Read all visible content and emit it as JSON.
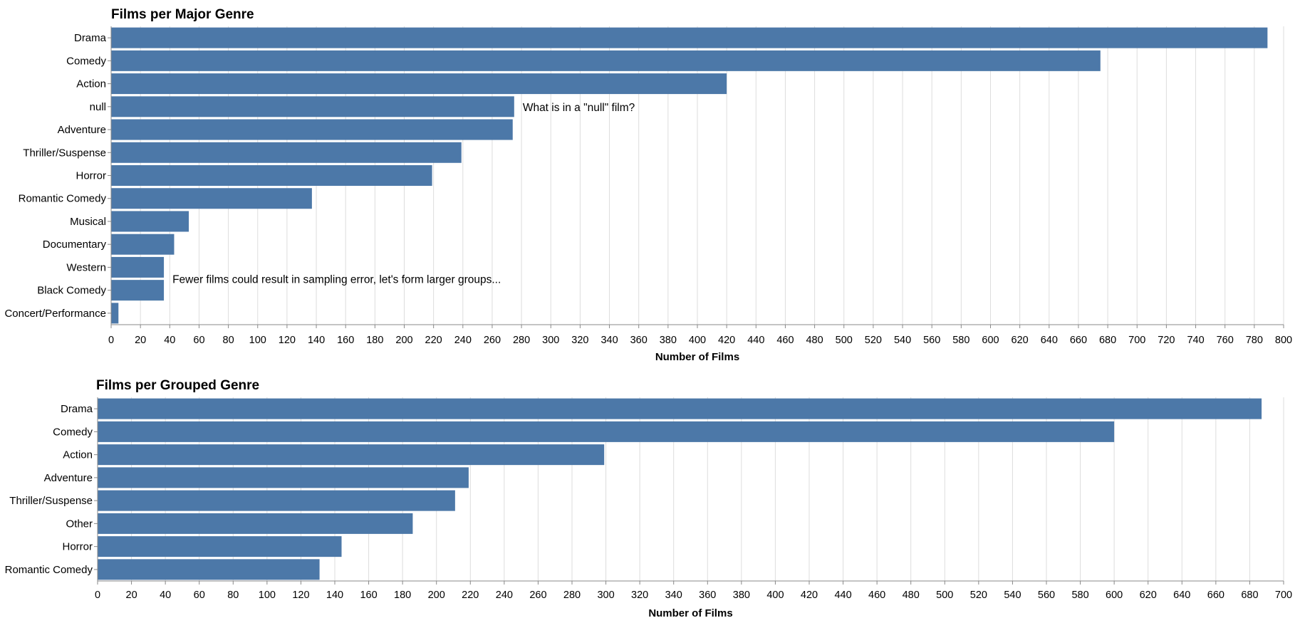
{
  "chart_data": [
    {
      "type": "bar",
      "orientation": "horizontal",
      "title": "Films per Major Genre",
      "xlabel": "Number of Films",
      "ylabel": "",
      "xlim": [
        0,
        800
      ],
      "x_ticks": [
        0,
        20,
        40,
        60,
        80,
        100,
        120,
        140,
        160,
        180,
        200,
        220,
        240,
        260,
        280,
        300,
        320,
        340,
        360,
        380,
        400,
        420,
        440,
        460,
        480,
        500,
        520,
        540,
        560,
        580,
        600,
        620,
        640,
        660,
        680,
        700,
        720,
        740,
        760,
        780,
        800
      ],
      "grid": true,
      "color": "#4c78a8",
      "categories": [
        "Drama",
        "Comedy",
        "Action",
        "null",
        "Adventure",
        "Thriller/Suspense",
        "Horror",
        "Romantic Comedy",
        "Musical",
        "Documentary",
        "Western",
        "Black Comedy",
        "Concert/Performance"
      ],
      "values": [
        789,
        675,
        420,
        275,
        274,
        239,
        219,
        137,
        53,
        43,
        36,
        36,
        5
      ],
      "annotations": [
        {
          "text": "What is in a \"null\" film?",
          "category": "null",
          "x": 275
        },
        {
          "text": "Fewer films could result in sampling error, let's form larger groups...",
          "category": "Western",
          "x": 36
        }
      ]
    },
    {
      "type": "bar",
      "orientation": "horizontal",
      "title": "Films per Grouped Genre",
      "xlabel": "Number of Films",
      "ylabel": "",
      "xlim": [
        0,
        700
      ],
      "x_ticks": [
        0,
        20,
        40,
        60,
        80,
        100,
        120,
        140,
        160,
        180,
        200,
        220,
        240,
        260,
        280,
        300,
        320,
        340,
        360,
        380,
        400,
        420,
        440,
        460,
        480,
        500,
        520,
        540,
        560,
        580,
        600,
        620,
        640,
        660,
        680,
        700
      ],
      "grid": true,
      "color": "#4c78a8",
      "categories": [
        "Drama",
        "Comedy",
        "Action",
        "Adventure",
        "Thriller/Suspense",
        "Other",
        "Horror",
        "Romantic Comedy"
      ],
      "values": [
        687,
        600,
        299,
        219,
        211,
        186,
        144,
        131
      ],
      "annotations": []
    }
  ]
}
